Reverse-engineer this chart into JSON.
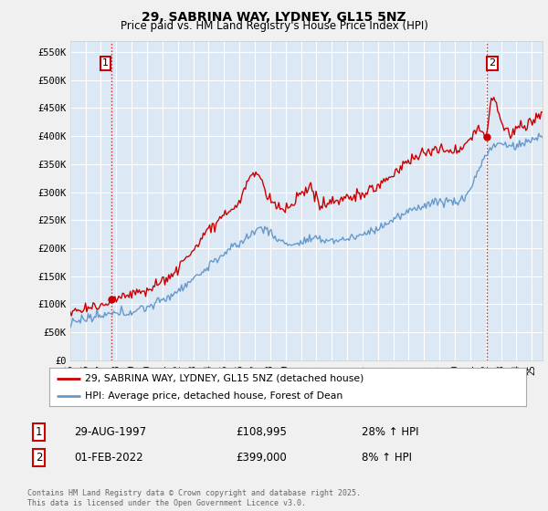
{
  "title": "29, SABRINA WAY, LYDNEY, GL15 5NZ",
  "subtitle": "Price paid vs. HM Land Registry's House Price Index (HPI)",
  "ylim": [
    0,
    570000
  ],
  "xlim_start": 1995.0,
  "xlim_end": 2025.7,
  "legend_line1": "29, SABRINA WAY, LYDNEY, GL15 5NZ (detached house)",
  "legend_line2": "HPI: Average price, detached house, Forest of Dean",
  "sale1_date": "29-AUG-1997",
  "sale1_price": "£108,995",
  "sale1_hpi": "28% ↑ HPI",
  "sale2_date": "01-FEB-2022",
  "sale2_price": "£399,000",
  "sale2_hpi": "8% ↑ HPI",
  "footnote": "Contains HM Land Registry data © Crown copyright and database right 2025.\nThis data is licensed under the Open Government Licence v3.0.",
  "sale1_color": "#cc0000",
  "sale2_color": "#cc0000",
  "hpi_color": "#6699cc",
  "house_color": "#cc0000",
  "background_color": "#f0f0f0",
  "plot_bg": "#dce9f5",
  "grid_color": "#ffffff",
  "sale1_x": 1997.66,
  "sale1_y": 108995,
  "sale2_x": 2022.08,
  "sale2_y": 399000,
  "ytick_vals": [
    0,
    50000,
    100000,
    150000,
    200000,
    250000,
    300000,
    350000,
    400000,
    450000,
    500000,
    550000
  ],
  "ytick_labels": [
    "£0",
    "£50K",
    "£100K",
    "£150K",
    "£200K",
    "£250K",
    "£300K",
    "£350K",
    "£400K",
    "£450K",
    "£500K",
    "£550K"
  ]
}
